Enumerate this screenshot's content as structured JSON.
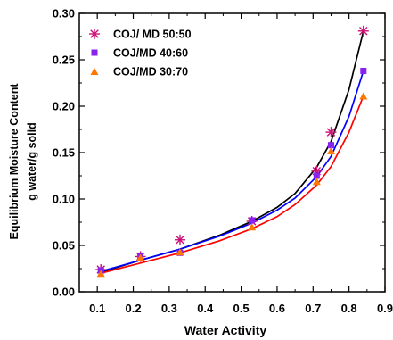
{
  "chart_data": {
    "type": "scatter",
    "xlabel": "Water Activity",
    "ylabel_lines": [
      "Equilibrium Moisture Content",
      "g water/g solid"
    ],
    "xlim": [
      0.05,
      0.9
    ],
    "ylim": [
      0.0,
      0.3
    ],
    "x_ticks": [
      "0.1",
      "0.2",
      "0.3",
      "0.4",
      "0.5",
      "0.6",
      "0.7",
      "0.8",
      "0.9"
    ],
    "y_ticks": [
      "0.00",
      "0.05",
      "0.10",
      "0.15",
      "0.20",
      "0.25",
      "0.30"
    ],
    "legend_position": "top-left",
    "series": [
      {
        "name": "COJ/ MD 50:50",
        "marker": "asterisk",
        "marker_color": "#cc1177",
        "fit_color": "#000000",
        "x": [
          0.11,
          0.22,
          0.33,
          0.53,
          0.71,
          0.75,
          0.84
        ],
        "y": [
          0.024,
          0.038,
          0.056,
          0.076,
          0.13,
          0.172,
          0.281
        ],
        "fit_x": [
          0.11,
          0.22,
          0.33,
          0.44,
          0.53,
          0.6,
          0.65,
          0.71,
          0.75,
          0.8,
          0.84
        ],
        "fit_y": [
          0.021,
          0.034,
          0.046,
          0.061,
          0.076,
          0.091,
          0.106,
          0.134,
          0.162,
          0.218,
          0.281
        ]
      },
      {
        "name": "COJ/MD 40:60",
        "marker": "square",
        "marker_color": "#8822ee",
        "fit_color": "#0000ff",
        "x": [
          0.11,
          0.22,
          0.33,
          0.53,
          0.71,
          0.75,
          0.84
        ],
        "y": [
          0.023,
          0.039,
          0.042,
          0.077,
          0.125,
          0.158,
          0.238
        ],
        "fit_x": [
          0.11,
          0.22,
          0.33,
          0.44,
          0.53,
          0.6,
          0.65,
          0.71,
          0.75,
          0.8,
          0.84
        ],
        "fit_y": [
          0.022,
          0.034,
          0.046,
          0.06,
          0.074,
          0.088,
          0.101,
          0.124,
          0.146,
          0.189,
          0.238
        ]
      },
      {
        "name": "COJ/MD 30:70",
        "marker": "triangle",
        "marker_color": "#ff7700",
        "fit_color": "#ff0000",
        "x": [
          0.11,
          0.22,
          0.33,
          0.53,
          0.71,
          0.75,
          0.84
        ],
        "y": [
          0.02,
          0.037,
          0.043,
          0.07,
          0.119,
          0.152,
          0.211
        ],
        "fit_x": [
          0.11,
          0.22,
          0.33,
          0.44,
          0.53,
          0.6,
          0.65,
          0.71,
          0.75,
          0.8,
          0.84
        ],
        "fit_y": [
          0.02,
          0.031,
          0.042,
          0.055,
          0.068,
          0.081,
          0.094,
          0.115,
          0.135,
          0.172,
          0.211
        ]
      }
    ]
  }
}
